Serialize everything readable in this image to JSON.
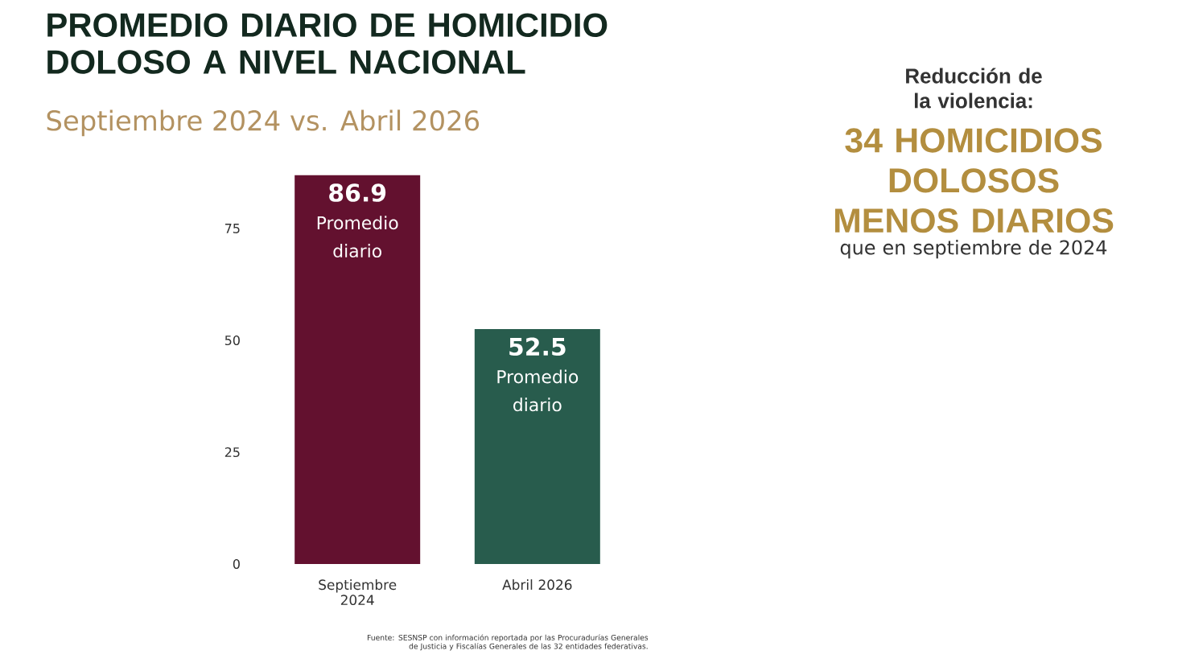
{
  "chart_data": {
    "type": "bar",
    "title": "PROMEDIO DIARIO DE HOMICIDIO DOLOSO A NIVEL NACIONAL",
    "subtitle": "Septiembre 2024 vs. Abril 2026",
    "categories": [
      "Septiembre 2024",
      "Abril 2026"
    ],
    "values": [
      86.9,
      52.5
    ],
    "colors": [
      "#63112f",
      "#285c4d"
    ],
    "ylim": [
      0,
      86.9
    ],
    "yticks": [
      0,
      25,
      50,
      75
    ],
    "grid": false,
    "data_labels": true,
    "annotations": [
      {
        "text": "Promedio diario",
        "x": "Septiembre 2024",
        "y": 86.9
      },
      {
        "text": "Promedio diario",
        "x": "Abril 2026",
        "y": 52.5
      },
      "Reducción de la violencia:",
      "34 HOMICIDIOS DOLOSOS MENOS DIARIOS",
      "que en septiembre de 2024",
      "Fuente: SESNSP con información reportada por las Procuradurías Generales de Justicia y Fiscalías Generales de las 32 entidades federativas."
    ]
  }
}
